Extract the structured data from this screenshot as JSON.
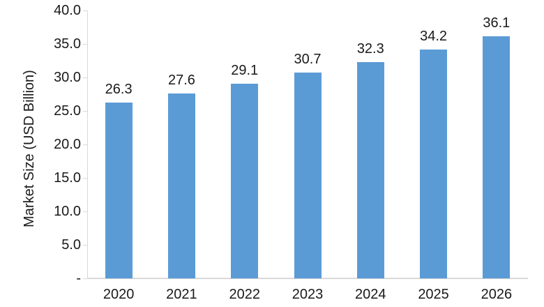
{
  "background_color": "#FFFFFF",
  "chart_data": {
    "type": "bar",
    "title": "",
    "categories": [
      "2020",
      "2021",
      "2022",
      "2023",
      "2024",
      "2025",
      "2026"
    ],
    "values": [
      26.3,
      27.6,
      29.1,
      30.7,
      32.3,
      34.2,
      36.1
    ],
    "value_labels": [
      "26.3",
      "27.6",
      "29.1",
      "30.7",
      "32.3",
      "34.2",
      "36.1"
    ],
    "xlabel": "",
    "ylabel": "Market Size (USD Billion)",
    "ylim": [
      0,
      40
    ],
    "y_tick_values": [
      40,
      35,
      30,
      25,
      20,
      15,
      10,
      5,
      0
    ],
    "y_tick_labels": [
      "40.0",
      "35.0",
      "30.0",
      "25.0",
      "20.0",
      "15.0",
      "10.0",
      "5.0",
      "-"
    ],
    "grid": false,
    "legend": "none",
    "bar_color": "#5B9BD5",
    "axis_line_color": "#D9D9D9",
    "label_color": "#1A1A1A"
  }
}
